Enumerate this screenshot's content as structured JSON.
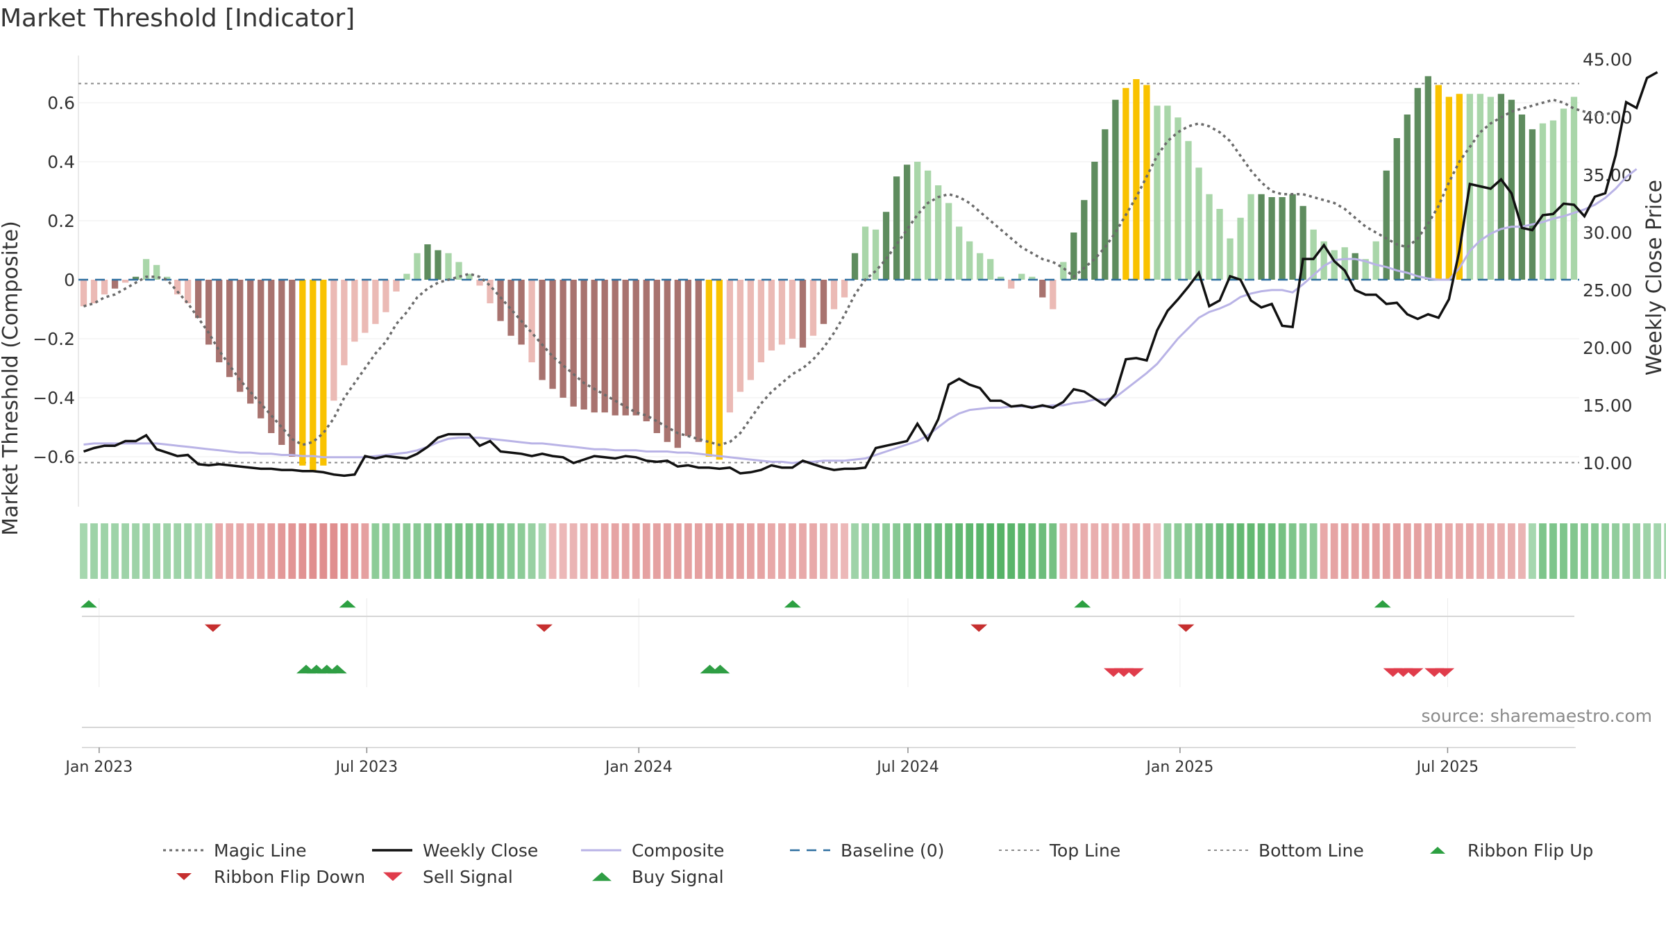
{
  "title": "Market Threshold [Indicator]",
  "source": "source: sharemaestro.com",
  "colors": {
    "bull_dark": "#5e8c5e",
    "bull_light": "#a9d6a9",
    "bear_dark": "#a8736f",
    "bear_light": "#ebbab5",
    "extreme": "#f9c200",
    "magic": "#6b6b6b",
    "close": "#111111",
    "composite": "#b9b3e6",
    "baseline": "#2e6fa0",
    "flip_up": "#2ca041",
    "flip_down": "#c62f2f",
    "buy": "#2f9e44",
    "sell": "#e03c4b"
  },
  "chart_data": {
    "type": "bar",
    "title": "Market Threshold [Indicator]",
    "ylabel": "Market Threshold (Composite)",
    "y2label": "Weekly Close Price",
    "ylim": [
      -0.75,
      0.75
    ],
    "y2lim": [
      6.2,
      46.4
    ],
    "y_ticks": [
      "0.6",
      "0.4",
      "0.2",
      "0",
      "−0.2",
      "−0.4",
      "−0.6"
    ],
    "y_tick_values": [
      0.6,
      0.4,
      0.2,
      0,
      -0.2,
      -0.4,
      -0.6
    ],
    "y2_ticks": [
      "45.00",
      "40.00",
      "35.00",
      "30.00",
      "25.00",
      "20.00",
      "15.00",
      "10.00"
    ],
    "y2_tick_values": [
      45,
      40,
      35,
      30,
      25,
      20,
      15,
      10
    ],
    "x_start": "2022-12-18",
    "x_end": "2025-09-28",
    "date_ticks": [
      "Jan 2023",
      "Jul 2023",
      "Jan 2024",
      "Jul 2024",
      "Jan 2025",
      "Jul 2025"
    ],
    "date_tick_dates": [
      "2023-01-01",
      "2023-07-01",
      "2024-01-01",
      "2024-07-01",
      "2025-01-01",
      "2025-07-01"
    ],
    "top_line": 0.665,
    "bottom_line": -0.62,
    "baseline": 0,
    "bars": [
      -0.09,
      -0.08,
      -0.05,
      -0.03,
      -0.01,
      0.01,
      0.07,
      0.05,
      0.01,
      -0.05,
      -0.08,
      -0.13,
      -0.22,
      -0.28,
      -0.33,
      -0.38,
      -0.42,
      -0.47,
      -0.52,
      -0.56,
      -0.6,
      -0.63,
      -0.65,
      -0.63,
      -0.41,
      -0.29,
      -0.21,
      -0.18,
      -0.15,
      -0.11,
      -0.04,
      0.02,
      0.09,
      0.12,
      0.1,
      0.09,
      0.06,
      0.02,
      -0.02,
      -0.08,
      -0.14,
      -0.19,
      -0.22,
      -0.28,
      -0.34,
      -0.37,
      -0.4,
      -0.43,
      -0.44,
      -0.45,
      -0.45,
      -0.46,
      -0.46,
      -0.46,
      -0.48,
      -0.52,
      -0.55,
      -0.57,
      -0.53,
      -0.55,
      -0.6,
      -0.61,
      -0.45,
      -0.38,
      -0.34,
      -0.28,
      -0.24,
      -0.22,
      -0.2,
      -0.23,
      -0.19,
      -0.15,
      -0.1,
      -0.06,
      0.09,
      0.18,
      0.17,
      0.23,
      0.35,
      0.39,
      0.4,
      0.37,
      0.32,
      0.26,
      0.18,
      0.13,
      0.09,
      0.07,
      0.01,
      -0.03,
      0.02,
      0.01,
      -0.06,
      -0.1,
      0.06,
      0.16,
      0.27,
      0.4,
      0.51,
      0.61,
      0.65,
      0.68,
      0.66,
      0.59,
      0.59,
      0.55,
      0.47,
      0.38,
      0.29,
      0.24,
      0.14,
      0.21,
      0.29,
      0.29,
      0.28,
      0.28,
      0.29,
      0.25,
      0.17,
      0.13,
      0.1,
      0.11,
      0.09,
      0.07,
      0.13,
      0.37,
      0.48,
      0.56,
      0.65,
      0.69,
      0.66,
      0.62,
      0.63,
      0.63,
      0.63,
      0.62,
      0.63,
      0.61,
      0.56,
      0.51,
      0.53,
      0.54,
      0.58,
      0.62
    ],
    "bar_types": "LLLDLDLLLLLDDDDDDDDDDEEELLLLLLLLLDDLLLLLDDDLDDDDDDDDDDDDDDDDEELLLLLLLDLDLLDLLDDDLLLLLLLLLLLLDLLDDDDDEEELLLLLLLLLLDDDDDLLLLDLLDDDDDEEELLLDDDDLLLLLLL",
    "magic_line": [
      -0.09,
      -0.08,
      -0.06,
      -0.05,
      -0.03,
      -0.01,
      0.01,
      0.01,
      0.0,
      -0.04,
      -0.08,
      -0.13,
      -0.18,
      -0.24,
      -0.29,
      -0.34,
      -0.38,
      -0.42,
      -0.46,
      -0.5,
      -0.54,
      -0.56,
      -0.55,
      -0.52,
      -0.47,
      -0.4,
      -0.35,
      -0.3,
      -0.25,
      -0.21,
      -0.15,
      -0.11,
      -0.06,
      -0.03,
      -0.01,
      0.0,
      0.01,
      0.02,
      0.01,
      -0.02,
      -0.06,
      -0.1,
      -0.14,
      -0.18,
      -0.22,
      -0.26,
      -0.29,
      -0.32,
      -0.35,
      -0.37,
      -0.39,
      -0.41,
      -0.43,
      -0.45,
      -0.46,
      -0.48,
      -0.5,
      -0.52,
      -0.53,
      -0.54,
      -0.55,
      -0.56,
      -0.55,
      -0.52,
      -0.47,
      -0.42,
      -0.38,
      -0.35,
      -0.32,
      -0.3,
      -0.27,
      -0.23,
      -0.18,
      -0.12,
      -0.05,
      0.0,
      0.03,
      0.07,
      0.12,
      0.17,
      0.22,
      0.26,
      0.28,
      0.29,
      0.28,
      0.26,
      0.23,
      0.2,
      0.17,
      0.14,
      0.11,
      0.09,
      0.07,
      0.06,
      0.04,
      0.01,
      0.04,
      0.07,
      0.11,
      0.16,
      0.22,
      0.28,
      0.35,
      0.42,
      0.47,
      0.5,
      0.52,
      0.53,
      0.52,
      0.5,
      0.47,
      0.42,
      0.37,
      0.33,
      0.3,
      0.29,
      0.29,
      0.29,
      0.28,
      0.27,
      0.26,
      0.24,
      0.21,
      0.18,
      0.16,
      0.14,
      0.12,
      0.11,
      0.14,
      0.19,
      0.25,
      0.33,
      0.4,
      0.45,
      0.5,
      0.53,
      0.55,
      0.57,
      0.58,
      0.59,
      0.6,
      0.61,
      0.6,
      0.58,
      0.57,
      0.56,
      0.56,
      0.57
    ],
    "weekly_close": [
      11.0,
      11.3,
      11.5,
      11.5,
      11.9,
      11.9,
      12.4,
      11.2,
      10.9,
      10.6,
      10.7,
      9.9,
      9.8,
      9.9,
      9.8,
      9.7,
      9.6,
      9.5,
      9.5,
      9.4,
      9.4,
      9.3,
      9.3,
      9.2,
      9.0,
      8.9,
      9.0,
      10.6,
      10.4,
      10.6,
      10.5,
      10.4,
      10.8,
      11.4,
      12.2,
      12.5,
      12.5,
      12.5,
      11.5,
      11.9,
      11.0,
      10.9,
      10.8,
      10.6,
      10.8,
      10.6,
      10.5,
      10.0,
      10.3,
      10.6,
      10.5,
      10.4,
      10.6,
      10.5,
      10.2,
      10.1,
      10.2,
      9.7,
      9.8,
      9.6,
      9.6,
      9.5,
      9.6,
      9.1,
      9.2,
      9.4,
      9.8,
      9.6,
      9.6,
      10.2,
      9.9,
      9.6,
      9.4,
      9.5,
      9.5,
      9.6,
      11.3,
      11.5,
      11.7,
      11.9,
      13.4,
      12.0,
      13.8,
      16.8,
      17.3,
      16.8,
      16.5,
      15.4,
      15.4,
      14.9,
      15.0,
      14.8,
      15.0,
      14.8,
      15.3,
      16.4,
      16.2,
      15.6,
      15.0,
      16.0,
      19.0,
      19.1,
      18.9,
      21.5,
      23.2,
      24.2,
      25.3,
      26.5,
      23.6,
      24.1,
      26.2,
      25.9,
      24.1,
      23.5,
      23.8,
      21.9,
      21.8,
      27.7,
      27.7,
      28.9,
      27.5,
      26.7,
      25.0,
      24.6,
      24.6,
      23.8,
      23.9,
      22.9,
      22.5,
      22.9,
      22.6,
      24.2,
      28.4,
      34.2,
      34.0,
      33.8,
      34.6,
      33.4,
      30.4,
      30.2,
      31.5,
      31.6,
      32.5,
      32.4,
      31.4,
      33.1,
      33.4,
      36.7,
      41.3,
      40.8,
      43.4,
      43.9
    ],
    "composite": [
      11.6,
      11.7,
      11.7,
      11.7,
      11.7,
      11.7,
      11.7,
      11.7,
      11.6,
      11.5,
      11.4,
      11.3,
      11.2,
      11.1,
      11.0,
      10.9,
      10.9,
      10.8,
      10.8,
      10.7,
      10.7,
      10.6,
      10.6,
      10.5,
      10.5,
      10.5,
      10.5,
      10.5,
      10.6,
      10.7,
      10.8,
      10.9,
      11.1,
      11.4,
      11.8,
      12.1,
      12.2,
      12.2,
      12.2,
      12.1,
      12.0,
      11.9,
      11.8,
      11.7,
      11.7,
      11.6,
      11.5,
      11.4,
      11.3,
      11.2,
      11.2,
      11.1,
      11.1,
      11.1,
      11.0,
      11.0,
      11.0,
      10.9,
      10.9,
      10.8,
      10.7,
      10.6,
      10.5,
      10.4,
      10.3,
      10.2,
      10.1,
      10.1,
      10.0,
      10.1,
      10.1,
      10.2,
      10.2,
      10.2,
      10.3,
      10.4,
      10.7,
      11.0,
      11.3,
      11.6,
      11.9,
      12.4,
      13.1,
      13.8,
      14.3,
      14.6,
      14.7,
      14.8,
      14.8,
      14.9,
      14.9,
      14.9,
      14.9,
      15.0,
      15.0,
      15.2,
      15.3,
      15.5,
      15.5,
      15.7,
      16.4,
      17.1,
      17.8,
      18.6,
      19.7,
      20.8,
      21.7,
      22.6,
      23.1,
      23.4,
      23.8,
      24.4,
      24.7,
      24.9,
      25.0,
      25.0,
      24.8,
      25.5,
      26.3,
      27.1,
      27.6,
      27.7,
      27.7,
      27.5,
      27.2,
      27.0,
      26.7,
      26.5,
      26.2,
      26.0,
      25.9,
      25.9,
      26.9,
      28.4,
      29.3,
      29.9,
      30.3,
      30.5,
      30.5,
      30.7,
      30.9,
      31.2,
      31.4,
      31.7,
      32.0,
      32.4,
      33.0,
      33.8,
      34.8,
      35.5
    ],
    "ribbon": [
      0.3,
      0.35,
      0.35,
      0.35,
      0.35,
      0.35,
      0.35,
      0.35,
      0.35,
      0.35,
      0.35,
      0.3,
      0.3,
      -0.35,
      -0.35,
      -0.35,
      -0.35,
      -0.38,
      -0.42,
      -0.45,
      -0.48,
      -0.5,
      -0.52,
      -0.52,
      -0.52,
      -0.5,
      -0.45,
      -0.42,
      0.45,
      0.45,
      0.45,
      0.48,
      0.5,
      0.52,
      0.55,
      0.58,
      0.6,
      0.6,
      0.6,
      0.58,
      0.55,
      0.5,
      0.45,
      0.38,
      0.3,
      -0.25,
      -0.25,
      -0.28,
      -0.3,
      -0.35,
      -0.35,
      -0.38,
      -0.38,
      -0.4,
      -0.4,
      -0.4,
      -0.4,
      -0.42,
      -0.42,
      -0.42,
      -0.42,
      -0.42,
      -0.42,
      -0.4,
      -0.38,
      -0.38,
      -0.35,
      -0.35,
      -0.35,
      -0.35,
      -0.35,
      -0.3,
      -0.28,
      -0.25,
      0.35,
      0.38,
      0.42,
      0.45,
      0.5,
      0.55,
      0.58,
      0.62,
      0.65,
      0.68,
      0.72,
      0.75,
      0.78,
      0.8,
      0.8,
      0.78,
      0.75,
      0.7,
      0.65,
      0.6,
      -0.3,
      -0.3,
      -0.32,
      -0.32,
      -0.33,
      -0.33,
      -0.33,
      -0.35,
      -0.35,
      -0.2,
      0.4,
      0.45,
      0.5,
      0.55,
      0.6,
      0.65,
      0.7,
      0.72,
      0.72,
      0.7,
      0.65,
      0.6,
      0.55,
      0.5,
      0.45,
      -0.35,
      -0.38,
      -0.4,
      -0.4,
      -0.42,
      -0.42,
      -0.42,
      -0.42,
      -0.4,
      -0.4,
      -0.38,
      -0.38,
      -0.35,
      -0.35,
      -0.35,
      -0.32,
      -0.32,
      -0.3,
      -0.3,
      -0.28,
      0.3,
      0.55,
      0.55,
      0.55,
      0.52,
      0.5,
      0.48,
      0.45,
      0.42,
      0.4,
      0.38,
      0.35,
      0.32,
      0.3,
      0.28,
      0.25,
      0.22,
      0.2,
      0.18,
      0.18
    ],
    "flip_up_dates": [
      "2022-12-25",
      "2023-06-18",
      "2024-04-14",
      "2024-10-27",
      "2025-05-18"
    ],
    "flip_down_dates": [
      "2023-03-19",
      "2023-10-29",
      "2024-08-18",
      "2025-01-05"
    ],
    "buy_signal_dates": [
      "2023-05-21",
      "2023-05-28",
      "2023-06-04",
      "2023-06-11",
      "2024-02-18",
      "2024-02-25"
    ],
    "sell_signal_dates": [
      "2024-11-17",
      "2024-11-24",
      "2024-12-01",
      "2025-05-25",
      "2025-06-01",
      "2025-06-08",
      "2025-06-22",
      "2025-06-29"
    ]
  },
  "legend": [
    {
      "label": "Magic Line",
      "icon": "dotted-line"
    },
    {
      "label": "Weekly Close",
      "icon": "solid-line"
    },
    {
      "label": "Composite",
      "icon": "solid-line"
    },
    {
      "label": "Baseline (0)",
      "icon": "dashed-line"
    },
    {
      "label": "Top Line",
      "icon": "dotted-line"
    },
    {
      "label": "Bottom Line",
      "icon": "dotted-line"
    },
    {
      "label": "Ribbon Flip Up",
      "icon": "triangle-up-icon"
    },
    {
      "label": "Ribbon Flip Down",
      "icon": "triangle-down-icon"
    },
    {
      "label": "Sell Signal",
      "icon": "triangle-down-icon"
    },
    {
      "label": "Buy Signal",
      "icon": "triangle-up-icon"
    }
  ]
}
